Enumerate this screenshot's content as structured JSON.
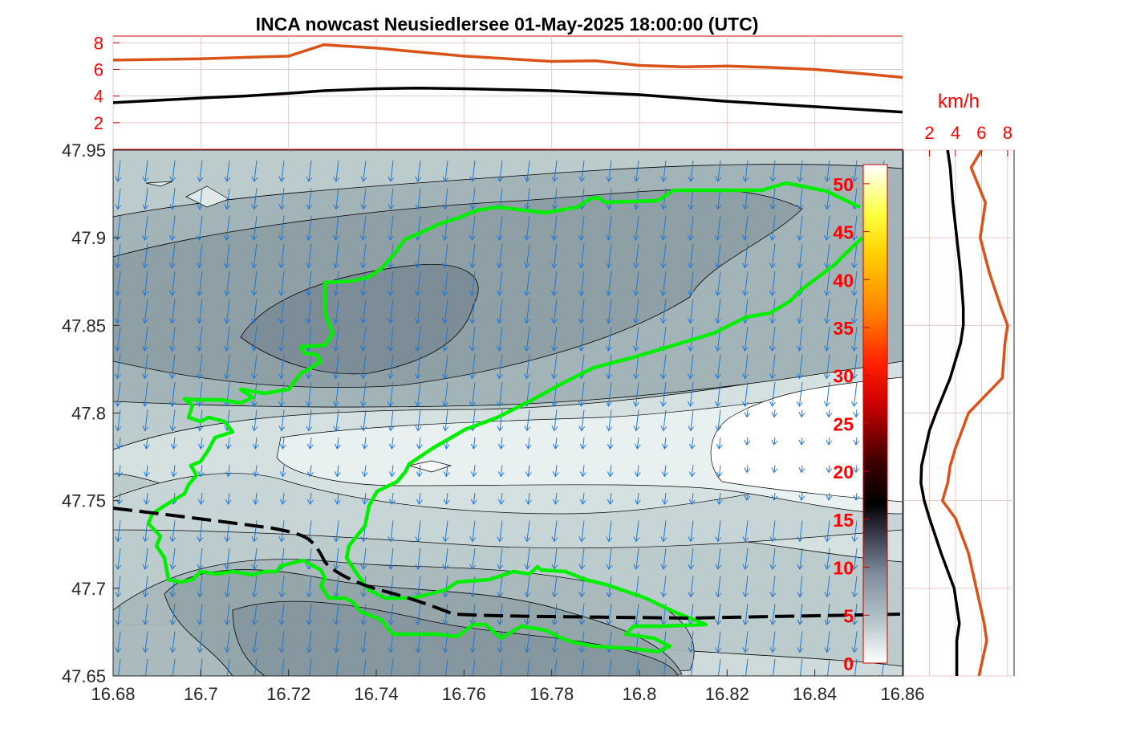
{
  "chart_data": [
    {
      "type": "contour",
      "title": "INCA nowcast Neusiedlersee 01-May-2025 18:00:00 (UTC)",
      "xlabel": "",
      "ylabel": "",
      "xlim": [
        16.68,
        16.86
      ],
      "ylim": [
        47.65,
        47.95
      ],
      "x_ticks": [
        "16.68",
        "16.7",
        "16.72",
        "16.74",
        "16.76",
        "16.78",
        "16.8",
        "16.82",
        "16.84",
        "16.86"
      ],
      "y_ticks": [
        "47.65",
        "47.7",
        "47.75",
        "47.8",
        "47.85",
        "47.9",
        "47.95"
      ],
      "field": "wind speed (km/h), filled contours with wind vectors",
      "colorbar": {
        "ticks": [
          "0",
          "5",
          "10",
          "15",
          "20",
          "25",
          "30",
          "35",
          "40",
          "45",
          "50"
        ],
        "range": [
          0,
          52
        ]
      },
      "lake_outline_color": "#00ee00",
      "border_line_style": "dashed-black"
    },
    {
      "type": "line",
      "position": "top-profile",
      "xlim": [
        16.68,
        16.86
      ],
      "ylim": [
        0,
        8.5
      ],
      "y_ticks": [
        "2",
        "4",
        "6",
        "8"
      ],
      "x": [
        16.68,
        16.7,
        16.71,
        16.72,
        16.728,
        16.74,
        16.75,
        16.76,
        16.78,
        16.79,
        16.8,
        16.81,
        16.82,
        16.83,
        16.84,
        16.85,
        16.86
      ],
      "series": [
        {
          "color": "#d95319",
          "values": [
            6.7,
            6.8,
            6.9,
            7.0,
            7.85,
            7.6,
            7.3,
            7.0,
            6.6,
            6.65,
            6.3,
            6.2,
            6.25,
            6.15,
            6.0,
            5.7,
            5.4
          ]
        },
        {
          "color": "#000000",
          "values": [
            3.5,
            3.85,
            4.0,
            4.2,
            4.4,
            4.55,
            4.6,
            4.55,
            4.4,
            4.25,
            4.1,
            3.85,
            3.6,
            3.4,
            3.2,
            3.0,
            2.8
          ]
        }
      ]
    },
    {
      "type": "line",
      "position": "right-profile",
      "unit_label": "km/h",
      "xlim": [
        0,
        8.5
      ],
      "ylim": [
        47.65,
        47.95
      ],
      "x_ticks": [
        "2",
        "4",
        "6",
        "8"
      ],
      "y": [
        47.95,
        47.94,
        47.92,
        47.9,
        47.88,
        47.86,
        47.85,
        47.84,
        47.82,
        47.8,
        47.79,
        47.78,
        47.77,
        47.76,
        47.75,
        47.74,
        47.72,
        47.7,
        47.68,
        47.67,
        47.65
      ],
      "series": [
        {
          "color": "#d95319",
          "values": [
            6.0,
            5.2,
            6.3,
            5.9,
            6.6,
            7.5,
            8.0,
            7.8,
            7.6,
            5.0,
            4.5,
            4.0,
            3.6,
            3.4,
            3.0,
            4.0,
            5.0,
            5.6,
            6.2,
            6.4,
            5.8
          ]
        },
        {
          "color": "#000000",
          "values": [
            3.4,
            3.6,
            3.8,
            4.1,
            4.4,
            4.6,
            4.6,
            4.4,
            3.6,
            2.5,
            2.0,
            1.7,
            1.4,
            1.35,
            1.6,
            2.0,
            2.9,
            3.9,
            4.3,
            4.1,
            4.1
          ]
        }
      ]
    }
  ]
}
